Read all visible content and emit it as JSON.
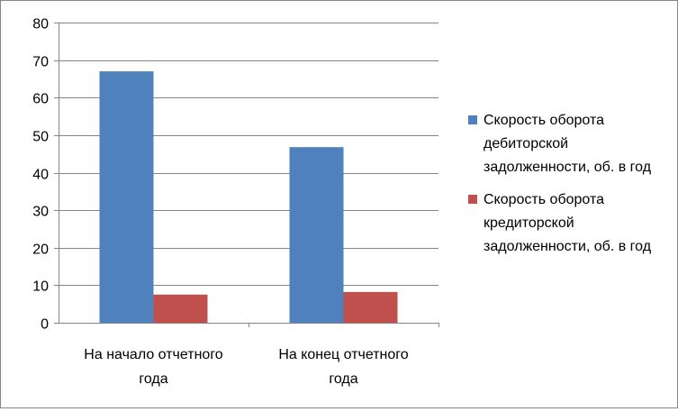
{
  "chart_data": {
    "type": "bar",
    "categories": [
      "На начало отчетного года",
      "На конец отчетного года"
    ],
    "category_lines": [
      [
        "На начало отчетного",
        "года"
      ],
      [
        "На конец отчетного",
        "года"
      ]
    ],
    "series": [
      {
        "name": "Скорость оборота дебиторской задолженности, об. в год",
        "values": [
          67,
          46.8
        ],
        "color": "#4f81bd"
      },
      {
        "name": "Скорость оборота кредиторской задолженности, об. в год",
        "values": [
          7.5,
          8.2
        ],
        "color": "#c0504d"
      }
    ],
    "ylim": [
      0,
      80
    ],
    "yticks": [
      0,
      10,
      20,
      30,
      40,
      50,
      60,
      70,
      80
    ],
    "grid": true,
    "legend_position": "right",
    "title": "",
    "xlabel": "",
    "ylabel": ""
  }
}
